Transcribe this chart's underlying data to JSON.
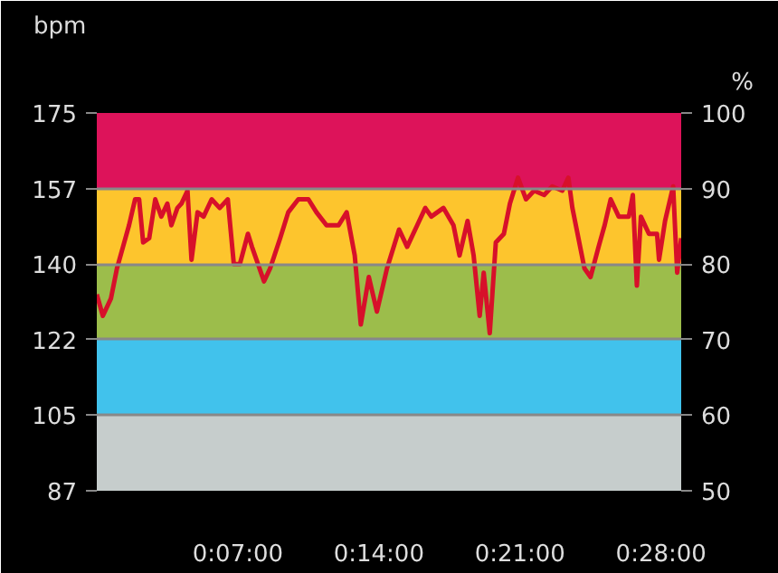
{
  "chart_data": {
    "type": "line",
    "ylabel": "bpm",
    "y2label": "%",
    "x": [
      0,
      0.3,
      0.7,
      1.0,
      1.3,
      1.6,
      1.9,
      2.1,
      2.3,
      2.6,
      2.9,
      3.2,
      3.5,
      3.7,
      4.0,
      4.2,
      4.5,
      4.7,
      5.0,
      5.3,
      5.7,
      6.1,
      6.5,
      6.8,
      7.1,
      7.5,
      7.7,
      8.3,
      8.6,
      9.1,
      9.5,
      10.0,
      10.5,
      10.9,
      11.4,
      12.0,
      12.4,
      12.8,
      13.1,
      13.5,
      13.9,
      14.4,
      15.0,
      15.4,
      15.9,
      16.3,
      16.6,
      17.2,
      17.7,
      18.0,
      18.4,
      18.7,
      19.0,
      19.2,
      19.5,
      19.8,
      20.2,
      20.5,
      20.9,
      21.3,
      21.7,
      22.2,
      22.6,
      23.1,
      23.4,
      23.6,
      24.2,
      24.5,
      24.9,
      25.2,
      25.5,
      25.9,
      26.4,
      26.6,
      26.8,
      27.0,
      27.4,
      27.8,
      27.9,
      28.2,
      28.6,
      28.8,
      29.0
    ],
    "series": [
      {
        "color": "#d7102a",
        "values": [
          133,
          128,
          132,
          139,
          144,
          149,
          155,
          155,
          145,
          146,
          155,
          151,
          154,
          149,
          153,
          154,
          157,
          141,
          152,
          151,
          155,
          153,
          155,
          140,
          140,
          147,
          144,
          136,
          139,
          146,
          152,
          155,
          155,
          152,
          149,
          149,
          152,
          142,
          126,
          137,
          129,
          139,
          148,
          144,
          149,
          153,
          151,
          153,
          149,
          142,
          150,
          142,
          128,
          138,
          124,
          145,
          147,
          154,
          160,
          155,
          157,
          156,
          158,
          157,
          160,
          153,
          139,
          137,
          144,
          149,
          155,
          151,
          151,
          156,
          135,
          151,
          147,
          147,
          141,
          150,
          158,
          138,
          146
        ]
      }
    ],
    "xlim": [
      0,
      29
    ],
    "xticks": [
      {
        "value": 7,
        "label": "0:07:00"
      },
      {
        "value": 14,
        "label": "0:14:00"
      },
      {
        "value": 21,
        "label": "0:21:00"
      },
      {
        "value": 28,
        "label": "0:28:00"
      }
    ],
    "ylim": [
      87.5,
      175
    ],
    "yticks": [
      {
        "value": 87.5,
        "label": "87"
      },
      105,
      {
        "value": 122.5,
        "label": "122"
      },
      140,
      {
        "value": 157.5,
        "label": "157"
      },
      175
    ],
    "y2lim": [
      50,
      100
    ],
    "y2ticks": [
      50,
      60,
      70,
      80,
      90,
      100
    ],
    "bands": [
      {
        "axis": "y",
        "from": 87.5,
        "to": 105,
        "color": "#c6cdcc"
      },
      {
        "axis": "y",
        "from": 105,
        "to": 122.5,
        "color": "#41c2ec"
      },
      {
        "axis": "y",
        "from": 122.5,
        "to": 140,
        "color": "#9cbd4b"
      },
      {
        "axis": "y",
        "from": 140,
        "to": 157.5,
        "color": "#fdc52d"
      },
      {
        "axis": "y",
        "from": 157.5,
        "to": 175,
        "color": "#dd135a"
      }
    ],
    "grid": "y",
    "marker": "none",
    "line_style": "solid"
  }
}
